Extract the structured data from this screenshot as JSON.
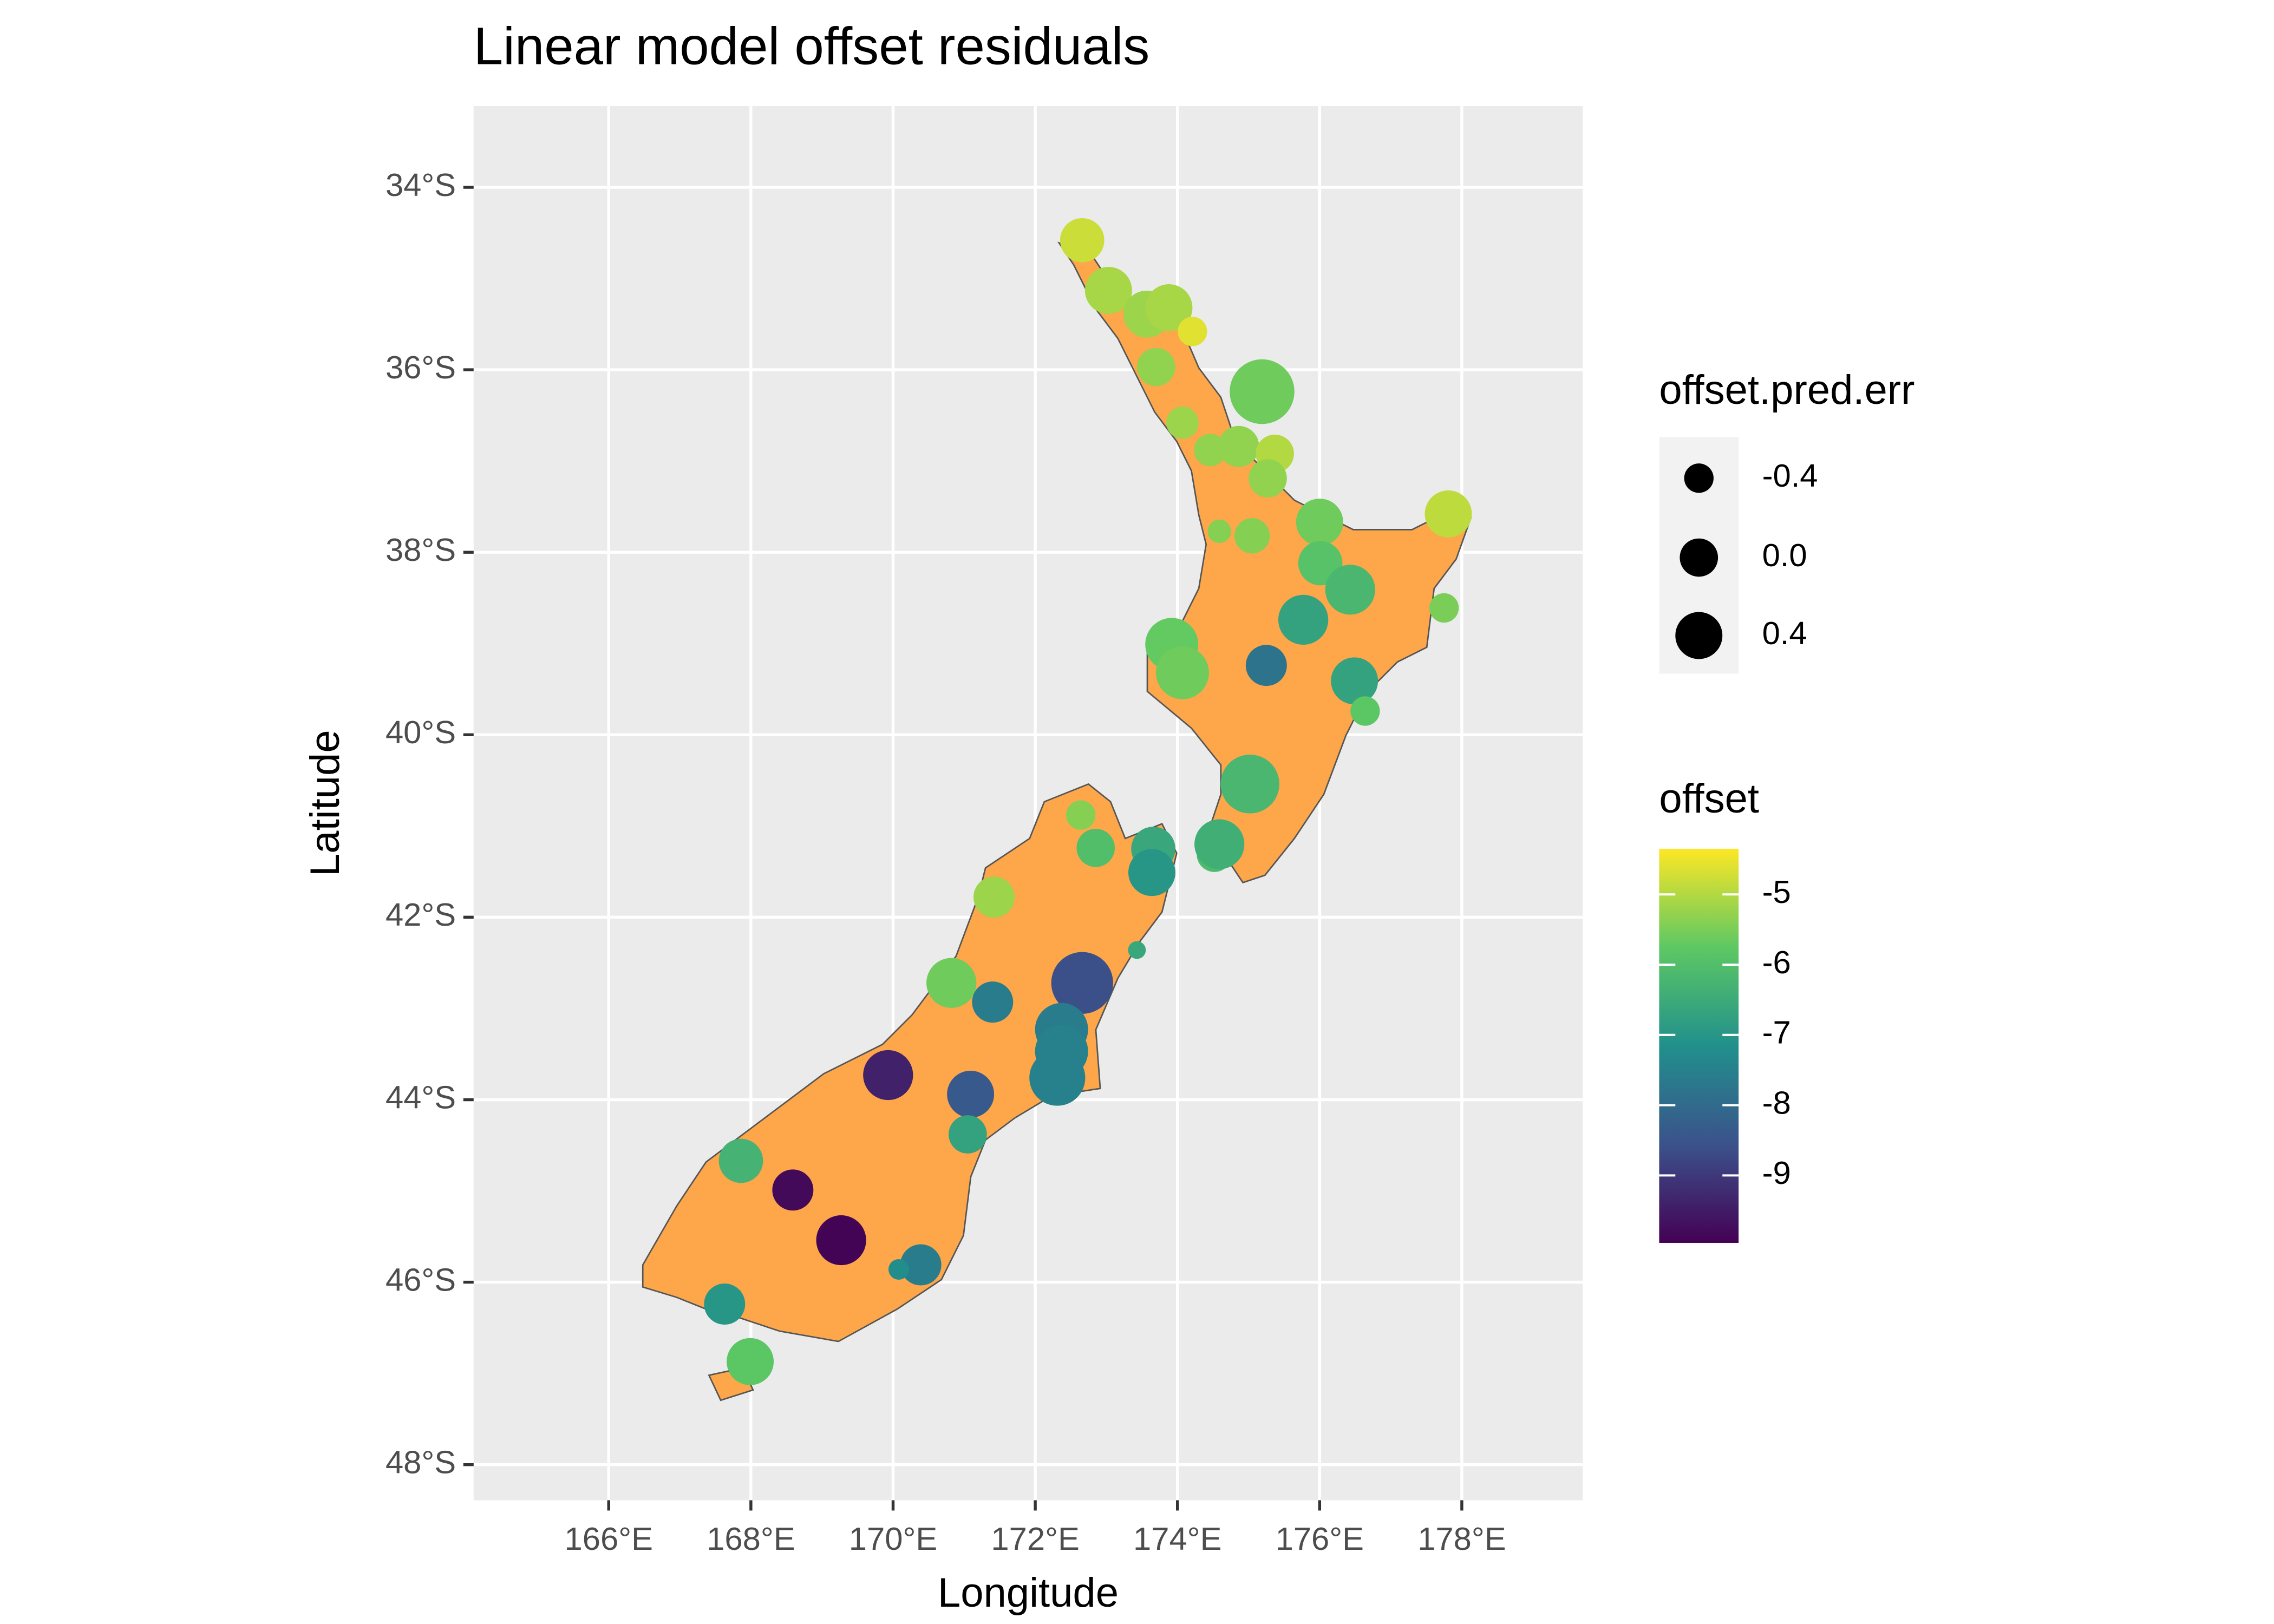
{
  "chart_data": {
    "type": "scatter",
    "title": "Linear model offset residuals",
    "x_label": "Longitude",
    "y_label": "Latitude",
    "xlim": [
      164.1,
      179.7
    ],
    "ylim": [
      -48.39,
      -33.11
    ],
    "xticks": [
      {
        "value": 166,
        "label": "166°E"
      },
      {
        "value": 168,
        "label": "168°E"
      },
      {
        "value": 170,
        "label": "170°E"
      },
      {
        "value": 172,
        "label": "172°E"
      },
      {
        "value": 174,
        "label": "174°E"
      },
      {
        "value": 176,
        "label": "176°E"
      },
      {
        "value": 178,
        "label": "178°E"
      }
    ],
    "yticks": [
      {
        "value": -34,
        "label": "34°S"
      },
      {
        "value": -36,
        "label": "36°S"
      },
      {
        "value": -38,
        "label": "38°S"
      },
      {
        "value": -40,
        "label": "40°S"
      },
      {
        "value": -42,
        "label": "42°S"
      },
      {
        "value": -44,
        "label": "44°S"
      },
      {
        "value": -46,
        "label": "46°S"
      },
      {
        "value": -48,
        "label": "48°S"
      }
    ],
    "grid": true,
    "size_legend_title": "offset.pred.err",
    "size_ticks": [
      -0.4,
      {
        "value": 0,
        "label": "0.0"
      },
      0.4
    ],
    "color_legend_title": "offset",
    "colorlim": [
      -9.96,
      -4.35
    ],
    "color_ticks": [
      -5,
      -6,
      -7,
      -8,
      -9
    ],
    "colormap": [
      "#440154",
      "#3B528B",
      "#21908C",
      "#5DC863",
      "#FDE725"
    ],
    "land_color": "#FDA64A",
    "x": [
      172.66,
      173.03,
      173.57,
      173.88,
      174.21,
      173.7,
      175.19,
      174.07,
      174.46,
      174.86,
      175.37,
      175.27,
      177.81,
      176.0,
      174.59,
      175.05,
      176.01,
      176.43,
      177.75,
      175.77,
      173.92,
      174.07,
      175.25,
      176.49,
      176.64,
      175.02,
      172.64,
      172.85,
      173.66,
      173.64,
      174.52,
      174.59,
      171.42,
      173.43,
      170.82,
      171.4,
      172.66,
      172.37,
      172.37,
      172.31,
      169.93,
      171.09,
      171.05,
      167.86,
      168.59,
      169.27,
      170.39,
      170.08,
      167.63,
      167.99
    ],
    "y": [
      -34.58,
      -35.13,
      -35.39,
      -35.32,
      -35.58,
      -35.97,
      -36.24,
      -36.58,
      -36.88,
      -36.84,
      -36.92,
      -37.19,
      -37.58,
      -37.67,
      -37.77,
      -37.82,
      -38.12,
      -38.41,
      -38.61,
      -38.74,
      -39.01,
      -39.32,
      -39.24,
      -39.41,
      -39.74,
      -40.54,
      -40.88,
      -41.24,
      -41.25,
      -41.51,
      -41.31,
      -41.2,
      -41.78,
      -42.36,
      -42.72,
      -42.93,
      -42.72,
      -43.23,
      -43.47,
      -43.76,
      -43.73,
      -43.94,
      -44.38,
      -44.67,
      -44.99,
      -45.54,
      -45.81,
      -45.86,
      -46.24,
      -46.87
    ],
    "sizes": [
      0.27,
      0.4,
      0.4,
      0.4,
      -0.4,
      0,
      1.2,
      -0.27,
      -0.27,
      0.13,
      0,
      0,
      0.4,
      0.4,
      -0.67,
      -0.13,
      0.27,
      0.53,
      -0.4,
      0.53,
      0.67,
      0.67,
      0.13,
      0.4,
      -0.4,
      0.93,
      -0.4,
      0,
      0.27,
      0.4,
      -0.13,
      0.53,
      0.13,
      -0.93,
      0.53,
      0.13,
      1.07,
      0.67,
      0.67,
      0.8,
      0.53,
      0.4,
      0,
      0.27,
      0.13,
      0.53,
      0.13,
      -0.8,
      0.13,
      0.4
    ],
    "offsets": [
      -4.8,
      -5.1,
      -5.2,
      -5.1,
      -4.6,
      -5.3,
      -5.6,
      -5.2,
      -5.3,
      -5.3,
      -5.0,
      -5.3,
      -4.9,
      -5.6,
      -5.4,
      -5.4,
      -5.9,
      -6.2,
      -5.5,
      -6.7,
      -5.7,
      -5.6,
      -7.8,
      -6.7,
      -5.8,
      -6.2,
      -5.4,
      -6.0,
      -6.6,
      -7.0,
      -6.1,
      -6.4,
      -5.2,
      -6.6,
      -5.6,
      -7.6,
      -8.6,
      -7.6,
      -7.5,
      -7.5,
      -9.4,
      -8.4,
      -6.7,
      -6.3,
      -9.8,
      -9.9,
      -7.6,
      -7.2,
      -7.0,
      -5.8
    ]
  }
}
